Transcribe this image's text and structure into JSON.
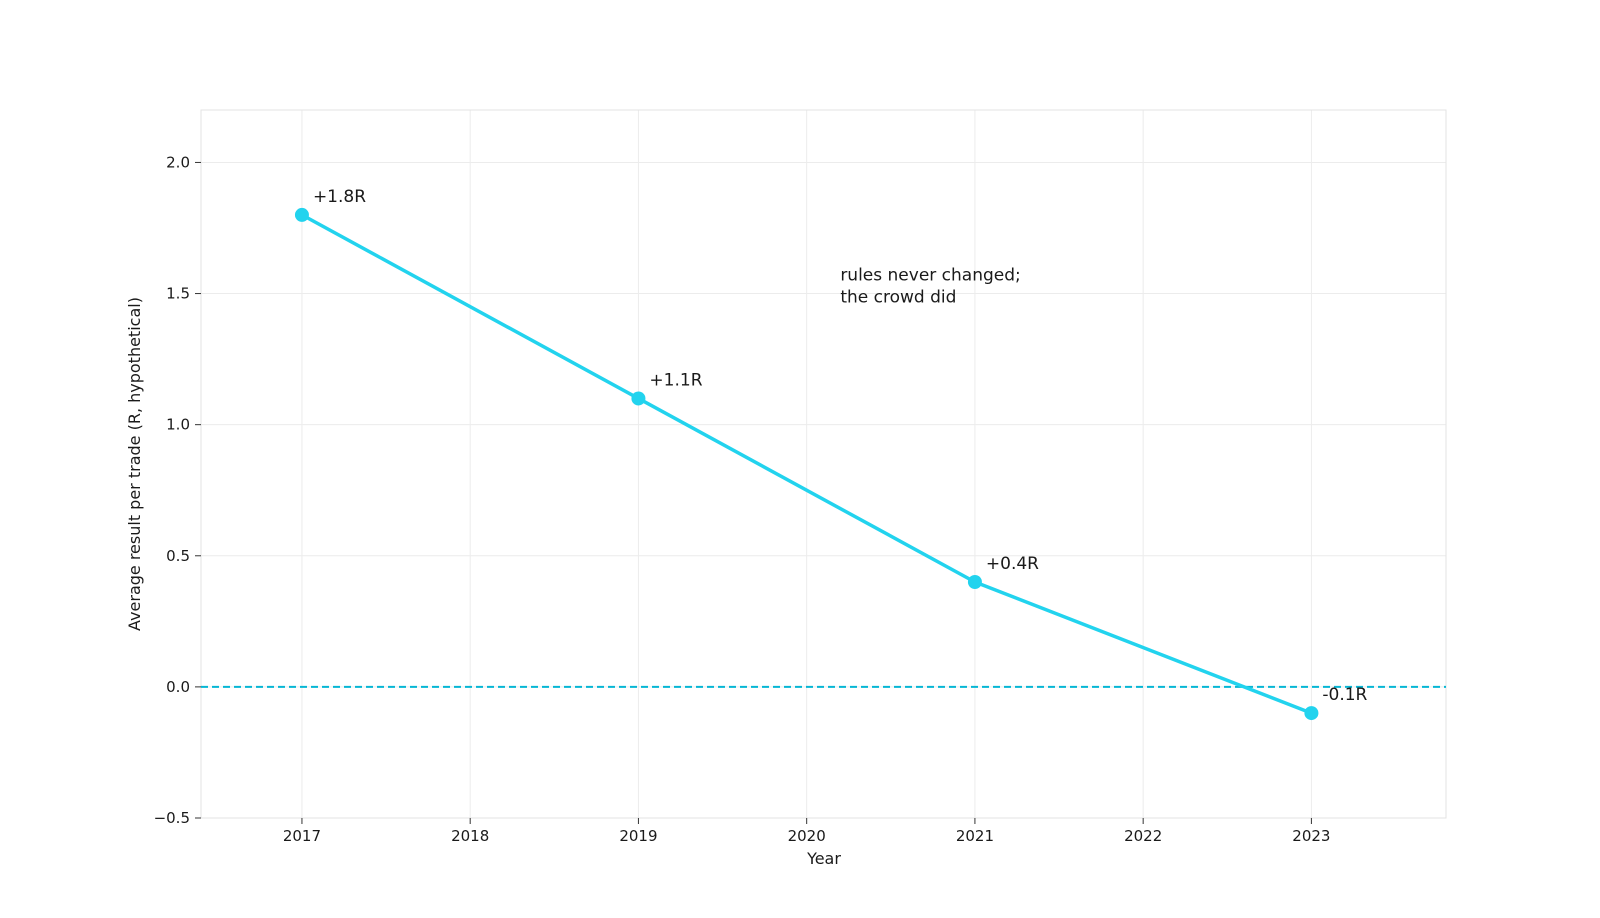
{
  "chart_data": {
    "type": "line",
    "title": "",
    "xlabel": "Year",
    "ylabel": "Average result per trade (R, hypothetical)",
    "x": [
      2017,
      2019,
      2021,
      2023
    ],
    "series": [
      {
        "values": [
          1.8,
          1.1,
          0.4,
          -0.1
        ],
        "labels": [
          "+1.8R",
          "+1.1R",
          "+0.4R",
          "-0.1R"
        ],
        "color": "#22d3ee"
      }
    ],
    "xlim": [
      2016.4,
      2023.8
    ],
    "ylim": [
      -0.5,
      2.2
    ],
    "xticks": [
      2017,
      2018,
      2019,
      2020,
      2021,
      2022,
      2023
    ],
    "xtick_labels": [
      "2017",
      "2018",
      "2019",
      "2020",
      "2021",
      "2022",
      "2023"
    ],
    "yticks": [
      -0.5,
      0.0,
      0.5,
      1.0,
      1.5,
      2.0
    ],
    "ytick_labels": [
      "−0.5",
      "0.0",
      "0.5",
      "1.0",
      "1.5",
      "2.0"
    ],
    "reference_line": {
      "y": 0.0,
      "style": "dashed",
      "color": "#06b6d4"
    },
    "annotation": {
      "lines": [
        "rules never changed;",
        "the crowd did"
      ],
      "x": 2020.2,
      "y": 1.55
    },
    "grid": true,
    "legend": "none"
  }
}
